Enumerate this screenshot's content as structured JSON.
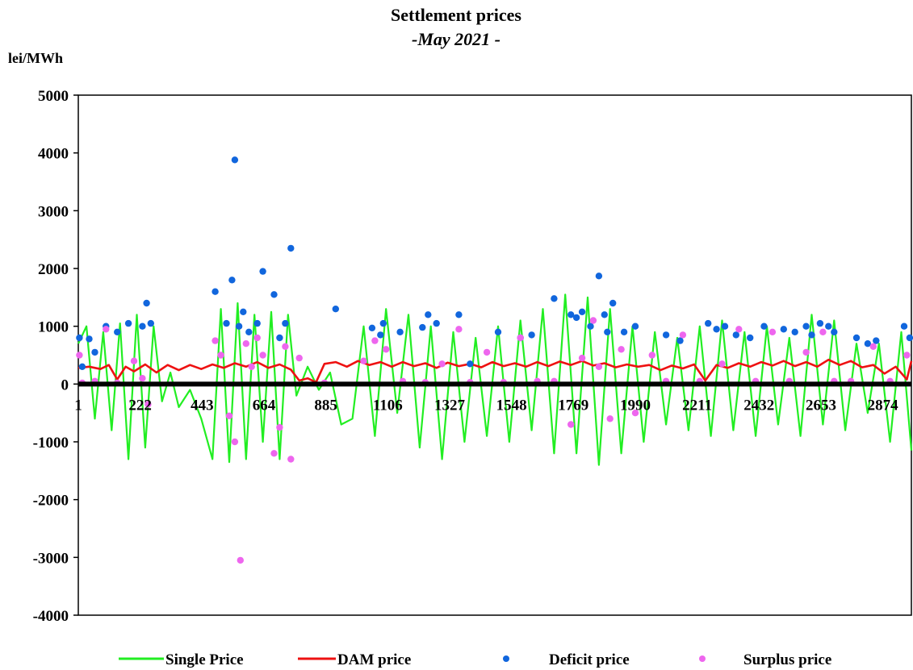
{
  "chart_data": {
    "type": "line",
    "title": "Settlement prices",
    "subtitle": "-May 2021 -",
    "ylabel": "lei/MWh",
    "ylim": [
      -4000,
      5000
    ],
    "yticks": [
      5000,
      4000,
      3000,
      2000,
      1000,
      0,
      -1000,
      -2000,
      -3000,
      -4000
    ],
    "xlim": [
      1,
      2976
    ],
    "xticks": [
      1,
      222,
      443,
      664,
      885,
      1106,
      1327,
      1548,
      1769,
      1990,
      2211,
      2432,
      2653,
      2874
    ],
    "grid": false,
    "legend_position": "bottom",
    "series": [
      {
        "name": "Single Price",
        "kind": "line",
        "color": "#22ee22",
        "x": [
          1,
          30,
          60,
          90,
          120,
          150,
          180,
          210,
          240,
          270,
          300,
          330,
          360,
          400,
          440,
          480,
          510,
          540,
          570,
          600,
          630,
          660,
          690,
          720,
          750,
          780,
          820,
          860,
          900,
          940,
          980,
          1020,
          1060,
          1100,
          1140,
          1180,
          1220,
          1260,
          1300,
          1340,
          1380,
          1420,
          1460,
          1500,
          1540,
          1580,
          1620,
          1660,
          1700,
          1740,
          1780,
          1820,
          1860,
          1900,
          1940,
          1980,
          2020,
          2060,
          2100,
          2140,
          2180,
          2220,
          2260,
          2300,
          2340,
          2380,
          2420,
          2460,
          2500,
          2540,
          2580,
          2620,
          2660,
          2700,
          2740,
          2780,
          2820,
          2860,
          2900,
          2940,
          2976
        ],
        "values": [
          700,
          1000,
          -600,
          900,
          -800,
          1050,
          -1300,
          1200,
          -1100,
          1000,
          -300,
          200,
          -400,
          -100,
          -600,
          -1300,
          1300,
          -1350,
          1400,
          -1300,
          1200,
          -1000,
          1250,
          -1300,
          1200,
          -200,
          300,
          -100,
          200,
          -700,
          -600,
          1000,
          -900,
          1300,
          -500,
          1200,
          -1100,
          1000,
          -1300,
          900,
          -1000,
          800,
          -900,
          1000,
          -1000,
          1100,
          -800,
          1300,
          -1200,
          1550,
          -1200,
          1500,
          -1400,
          1300,
          -1200,
          1000,
          -1000,
          900,
          -700,
          800,
          -800,
          1000,
          -900,
          1100,
          -800,
          900,
          -900,
          1000,
          -700,
          800,
          -900,
          1200,
          -700,
          1100,
          -800,
          700,
          -500,
          700,
          -1000,
          900,
          -1150
        ]
      },
      {
        "name": "DAM price",
        "kind": "line",
        "color": "#ee1111",
        "x": [
          1,
          40,
          80,
          110,
          140,
          170,
          200,
          240,
          280,
          320,
          360,
          400,
          440,
          480,
          520,
          560,
          600,
          640,
          680,
          720,
          760,
          790,
          820,
          850,
          880,
          920,
          960,
          1000,
          1040,
          1080,
          1120,
          1160,
          1200,
          1240,
          1280,
          1320,
          1360,
          1400,
          1440,
          1480,
          1520,
          1560,
          1600,
          1640,
          1680,
          1720,
          1760,
          1800,
          1840,
          1880,
          1920,
          1960,
          2000,
          2040,
          2080,
          2120,
          2160,
          2200,
          2240,
          2280,
          2320,
          2360,
          2400,
          2440,
          2480,
          2520,
          2560,
          2600,
          2640,
          2680,
          2720,
          2760,
          2800,
          2840,
          2880,
          2920,
          2960,
          2976
        ],
        "values": [
          280,
          300,
          260,
          330,
          80,
          300,
          220,
          340,
          200,
          330,
          240,
          330,
          260,
          340,
          280,
          360,
          300,
          380,
          280,
          340,
          250,
          60,
          100,
          30,
          350,
          380,
          300,
          400,
          330,
          380,
          300,
          380,
          310,
          360,
          280,
          370,
          310,
          350,
          290,
          380,
          310,
          360,
          300,
          380,
          310,
          390,
          330,
          400,
          320,
          360,
          290,
          340,
          300,
          330,
          240,
          320,
          270,
          340,
          60,
          330,
          280,
          360,
          300,
          380,
          320,
          400,
          310,
          380,
          300,
          420,
          330,
          400,
          290,
          330,
          180,
          300,
          80,
          400
        ]
      },
      {
        "name": "Deficit price",
        "kind": "scatter",
        "color": "#1166dd",
        "x": [
          5,
          15,
          40,
          60,
          100,
          140,
          180,
          230,
          245,
          260,
          490,
          530,
          550,
          560,
          575,
          590,
          610,
          640,
          660,
          700,
          720,
          740,
          760,
          920,
          1050,
          1080,
          1090,
          1150,
          1230,
          1250,
          1280,
          1360,
          1400,
          1500,
          1580,
          1620,
          1700,
          1760,
          1780,
          1800,
          1830,
          1860,
          1880,
          1890,
          1910,
          1950,
          1990,
          2100,
          2150,
          2250,
          2280,
          2310,
          2350,
          2400,
          2450,
          2520,
          2560,
          2600,
          2620,
          2650,
          2680,
          2700,
          2780,
          2820,
          2850,
          2950,
          2970
        ],
        "values": [
          800,
          300,
          780,
          550,
          1000,
          900,
          1050,
          1000,
          1400,
          1050,
          1600,
          1050,
          1800,
          3880,
          1000,
          1250,
          900,
          1050,
          1950,
          1550,
          800,
          1050,
          2350,
          1300,
          970,
          850,
          1050,
          900,
          980,
          1200,
          1050,
          1200,
          350,
          900,
          800,
          850,
          1480,
          1200,
          1150,
          1250,
          1000,
          1870,
          1200,
          900,
          1400,
          900,
          1000,
          850,
          750,
          1050,
          950,
          1000,
          850,
          800,
          1000,
          950,
          900,
          1000,
          850,
          1050,
          1000,
          900,
          800,
          700,
          750,
          1000,
          800
        ]
      },
      {
        "name": "Surplus price",
        "kind": "scatter",
        "color": "#ee66ee",
        "x": [
          5,
          15,
          60,
          100,
          140,
          200,
          230,
          250,
          490,
          510,
          540,
          560,
          580,
          600,
          620,
          640,
          660,
          700,
          720,
          740,
          760,
          790,
          880,
          1020,
          1060,
          1100,
          1160,
          1240,
          1300,
          1360,
          1400,
          1460,
          1520,
          1580,
          1640,
          1700,
          1760,
          1800,
          1840,
          1860,
          1900,
          1940,
          1990,
          2050,
          2100,
          2160,
          2220,
          2300,
          2360,
          2420,
          2480,
          2540,
          2600,
          2660,
          2700,
          2760,
          2840,
          2900,
          2960
        ],
        "values": [
          500,
          20,
          50,
          950,
          20,
          400,
          100,
          -350,
          750,
          500,
          -550,
          -1000,
          -3050,
          700,
          300,
          800,
          500,
          -1200,
          -750,
          650,
          -1300,
          450,
          20,
          400,
          750,
          600,
          50,
          30,
          350,
          950,
          30,
          550,
          30,
          800,
          50,
          50,
          -700,
          450,
          1100,
          300,
          -600,
          600,
          -500,
          500,
          50,
          850,
          50,
          350,
          950,
          50,
          900,
          50,
          550,
          900,
          50,
          50,
          650,
          50,
          500
        ]
      }
    ],
    "xtick_interval": 221
  }
}
